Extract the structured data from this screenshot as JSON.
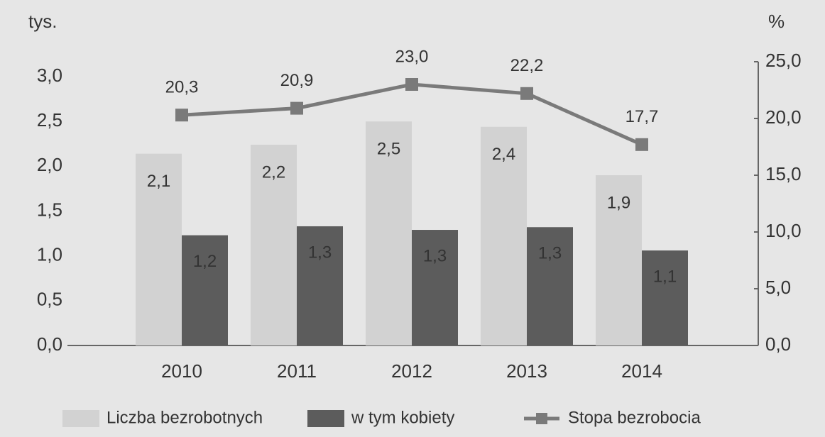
{
  "chart_data": {
    "type": "bar_line",
    "y_label": "tys.",
    "y2_label": "%",
    "categories": [
      "2010",
      "2011",
      "2012",
      "2013",
      "2014"
    ],
    "ylim": [
      0,
      3.0
    ],
    "yticks": [
      {
        "value": 0,
        "label": "0,0"
      },
      {
        "value": 0.5,
        "label": "0,5"
      },
      {
        "value": 1.0,
        "label": "1,0"
      },
      {
        "value": 1.5,
        "label": "1,5"
      },
      {
        "value": 2.0,
        "label": "2,0"
      },
      {
        "value": 2.5,
        "label": "2,5"
      },
      {
        "value": 3.0,
        "label": "3,0"
      }
    ],
    "y2lim": [
      0,
      25.0
    ],
    "y2ticks": [
      {
        "value": 0,
        "label": "0,0"
      },
      {
        "value": 5,
        "label": "5,0"
      },
      {
        "value": 10,
        "label": "10,0"
      },
      {
        "value": 15,
        "label": "15,0"
      },
      {
        "value": 20,
        "label": "20,0"
      },
      {
        "value": 25,
        "label": "25,0"
      }
    ],
    "series": [
      {
        "name": "Liczba bezrobotnych",
        "type": "bar",
        "color": "#d2d2d2",
        "values": [
          2.14,
          2.24,
          2.5,
          2.44,
          1.9
        ],
        "value_labels": [
          "2,1",
          "2,2",
          "2,5",
          "2,4",
          "1,9"
        ]
      },
      {
        "name": "w tym kobiety",
        "type": "bar",
        "color": "#5c5c5c",
        "values": [
          1.23,
          1.33,
          1.29,
          1.32,
          1.06
        ],
        "value_labels": [
          "1,2",
          "1,3",
          "1,3",
          "1,3",
          "1,1"
        ]
      },
      {
        "name": "Stopa bezrobocia",
        "type": "line",
        "axis": "y2",
        "color": "#7a7a7a",
        "values": [
          20.3,
          20.9,
          23.0,
          22.2,
          17.7
        ],
        "value_labels": [
          "20,3",
          "20,9",
          "23,0",
          "22,2",
          "17,7"
        ]
      }
    ]
  }
}
